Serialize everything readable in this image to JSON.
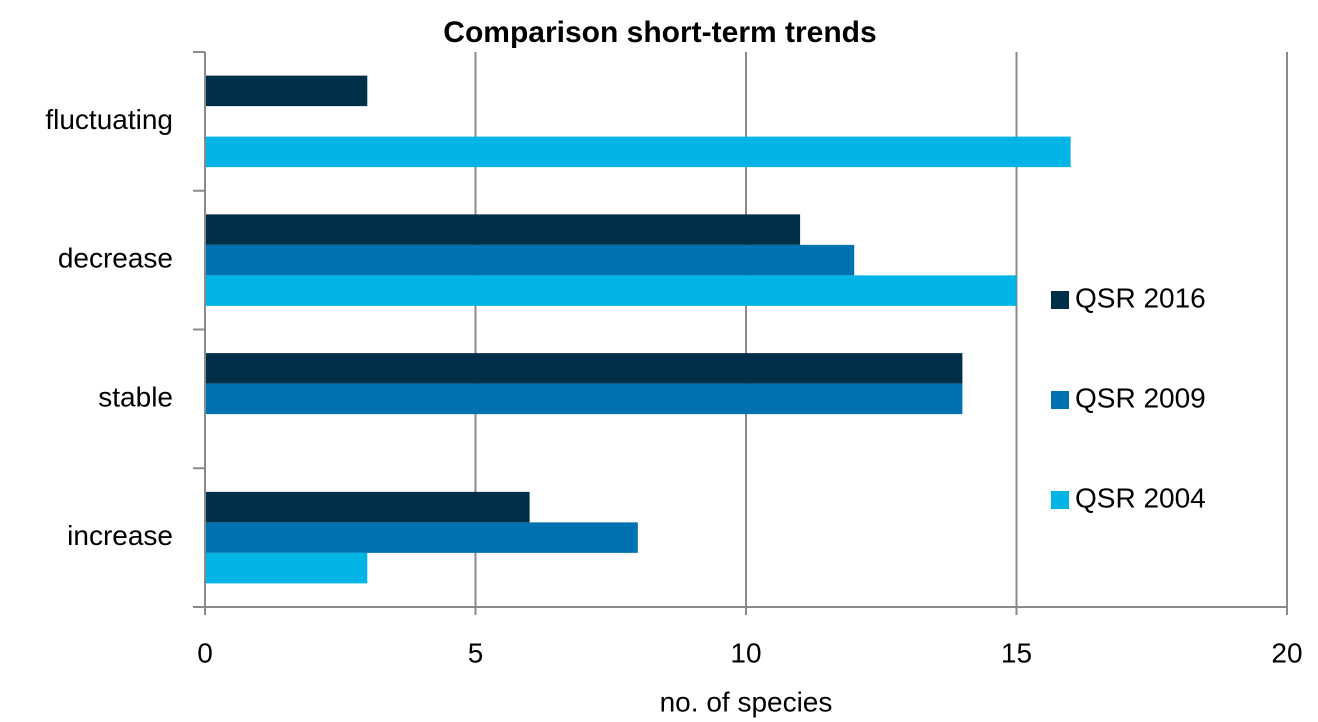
{
  "chart_data": {
    "type": "hbar",
    "title": "Comparison short-term trends",
    "x_label": "no. of species",
    "categories": [
      "fluctuating",
      "decrease",
      "stable",
      "increase"
    ],
    "series": [
      {
        "name": "QSR 2016",
        "color": "#002f4a",
        "values": [
          3,
          11,
          14,
          6
        ]
      },
      {
        "name": "QSR 2009",
        "color": "#0072b2",
        "values": [
          null,
          12,
          14,
          8
        ]
      },
      {
        "name": "QSR 2004",
        "color": "#00b4e6",
        "values": [
          16,
          15,
          null,
          3
        ]
      }
    ],
    "xlim": [
      0,
      20
    ],
    "xticks": [
      0,
      5,
      10,
      15,
      20
    ],
    "grid": true,
    "legend": "right"
  }
}
